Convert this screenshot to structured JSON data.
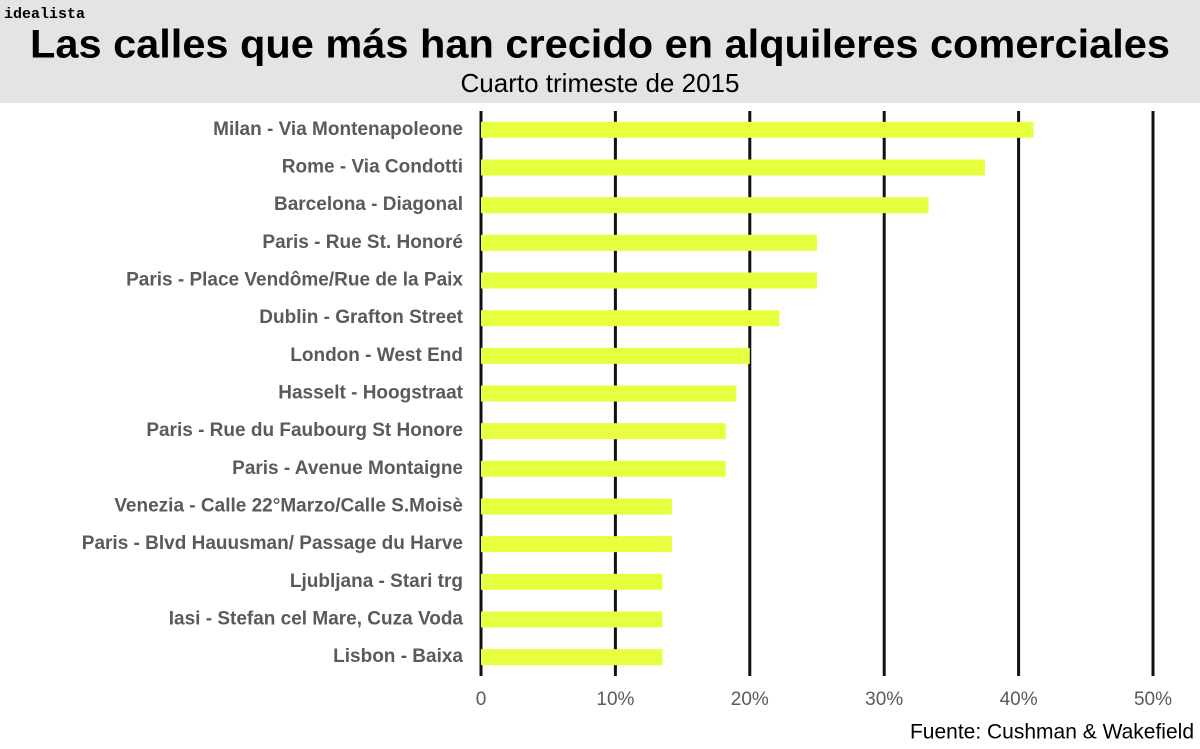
{
  "brand": "idealista",
  "chart_data": {
    "type": "hbar",
    "title": "Las calles que más han crecido en alquileres comerciales",
    "subtitle": "Cuarto trimeste de 2015",
    "source": "Fuente: Cushman & Wakefield",
    "categories": [
      "Milan - Via Montenapoleone",
      "Rome - Via Condotti",
      "Barcelona - Diagonal",
      "Paris - Rue St. Honoré",
      "Paris - Place Vendôme/Rue de la Paix",
      "Dublin - Grafton Street",
      "London - West End",
      "Hasselt - Hoogstraat",
      "Paris - Rue du Faubourg St Honore",
      "Paris - Avenue Montaigne",
      "Venezia - Calle 22°Marzo/Calle S.Moisè",
      "Paris - Blvd Hauusman/ Passage du Harve",
      "Ljubljana - Stari trg",
      "Iasi - Stefan cel Mare, Cuza Voda",
      "Lisbon - Baixa"
    ],
    "values": [
      41.1,
      37.5,
      33.3,
      25,
      25,
      22.2,
      20,
      19,
      18.2,
      18.2,
      14.2,
      14.2,
      13.5,
      13.5,
      13.5
    ],
    "color": "#e6ff3f",
    "xlim": [
      0,
      50
    ],
    "xticks": [
      0,
      {
        "value": 10,
        "label": "10%"
      },
      {
        "value": 20,
        "label": "20%"
      },
      {
        "value": 30,
        "label": "30%"
      },
      {
        "value": 40,
        "label": "40%"
      },
      {
        "value": 50,
        "label": "50%"
      }
    ],
    "grid": true
  }
}
